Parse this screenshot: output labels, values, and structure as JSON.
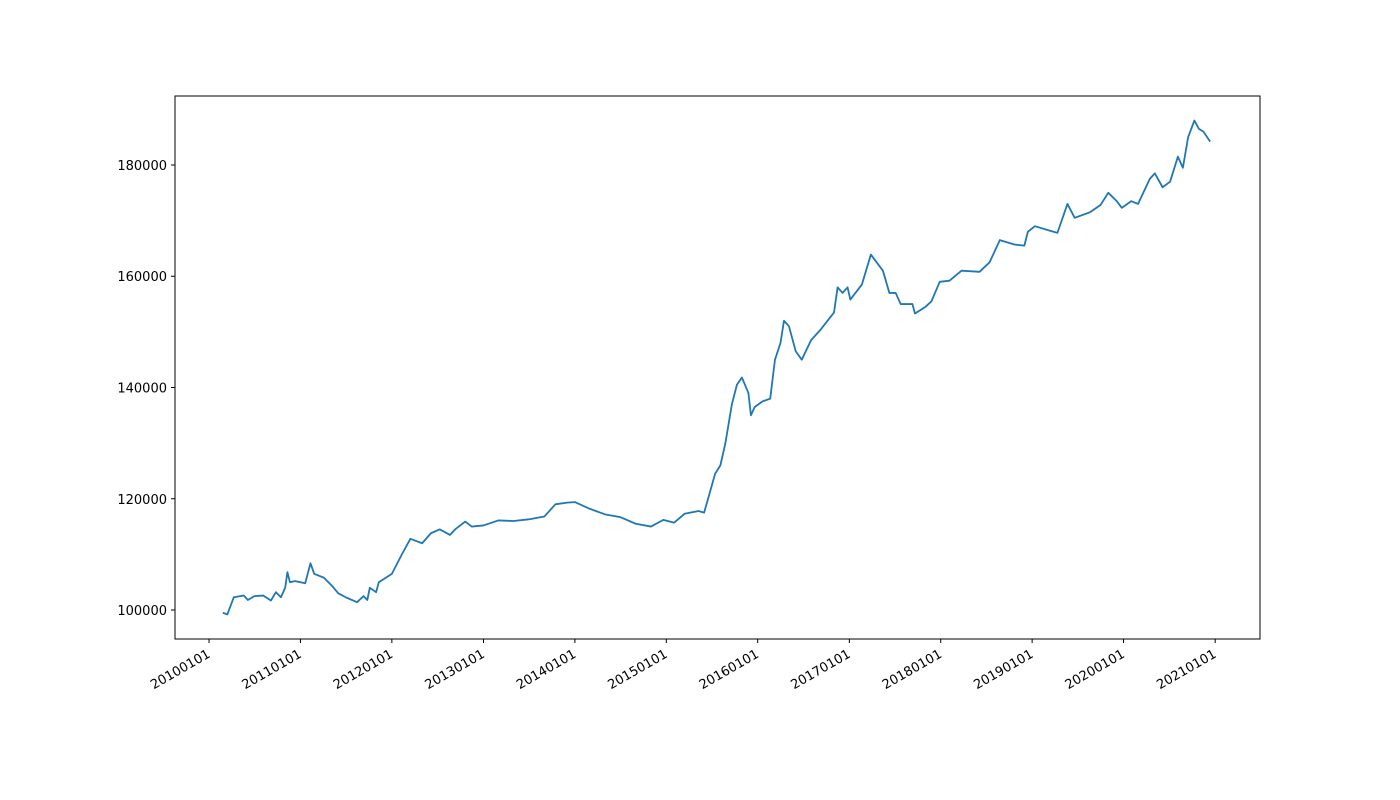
{
  "chart_data": {
    "type": "line",
    "color": "#1f77b4",
    "x": [
      "2010-02-25",
      "2010-03-15",
      "2010-04-10",
      "2010-05-20",
      "2010-06-05",
      "2010-07-01",
      "2010-08-05",
      "2010-09-05",
      "2010-09-25",
      "2010-10-15",
      "2010-11-01",
      "2010-11-10",
      "2010-11-20",
      "2010-12-10",
      "2011-01-01",
      "2011-01-20",
      "2011-02-10",
      "2011-02-25",
      "2011-04-05",
      "2011-05-10",
      "2011-06-01",
      "2011-07-05",
      "2011-08-15",
      "2011-09-10",
      "2011-09-25",
      "2011-10-05",
      "2011-10-30",
      "2011-11-10",
      "2012-01-01",
      "2012-02-10",
      "2012-03-15",
      "2012-05-01",
      "2012-06-05",
      "2012-07-10",
      "2012-08-20",
      "2012-09-10",
      "2012-10-20",
      "2012-11-15",
      "2013-01-01",
      "2013-03-01",
      "2013-05-01",
      "2013-07-01",
      "2013-09-01",
      "2013-10-15",
      "2013-12-01",
      "2014-01-01",
      "2014-03-01",
      "2014-05-01",
      "2014-07-01",
      "2014-09-01",
      "2014-11-01",
      "2014-12-20",
      "2015-02-01",
      "2015-03-15",
      "2015-05-10",
      "2015-06-01",
      "2015-06-20",
      "2015-07-15",
      "2015-08-05",
      "2015-08-25",
      "2015-09-20",
      "2015-10-10",
      "2015-10-30",
      "2015-11-25",
      "2015-12-05",
      "2015-12-20",
      "2016-01-20",
      "2016-02-20",
      "2016-03-10",
      "2016-04-01",
      "2016-04-15",
      "2016-05-05",
      "2016-06-01",
      "2016-06-25",
      "2016-08-01",
      "2016-09-10",
      "2016-11-01",
      "2016-11-15",
      "2016-12-05",
      "2016-12-25",
      "2017-01-05",
      "2017-02-20",
      "2017-03-28",
      "2017-05-15",
      "2017-06-10",
      "2017-07-05",
      "2017-07-25",
      "2017-09-10",
      "2017-09-20",
      "2017-11-01",
      "2017-11-25",
      "2017-12-28",
      "2018-02-05",
      "2018-03-25",
      "2018-06-05",
      "2018-07-15",
      "2018-08-25",
      "2018-10-22",
      "2018-12-01",
      "2018-12-15",
      "2019-01-12",
      "2019-03-12",
      "2019-04-12",
      "2019-05-22",
      "2019-06-20",
      "2019-08-20",
      "2019-10-01",
      "2019-11-01",
      "2019-12-05",
      "2019-12-25",
      "2020-02-01",
      "2020-02-28",
      "2020-04-15",
      "2020-05-05",
      "2020-06-05",
      "2020-07-05",
      "2020-08-05",
      "2020-08-25",
      "2020-09-15",
      "2020-10-10",
      "2020-10-28",
      "2020-11-15",
      "2020-12-12"
    ],
    "values": [
      99500,
      99200,
      102300,
      102600,
      101800,
      102500,
      102600,
      101700,
      103200,
      102300,
      104000,
      106800,
      105000,
      105200,
      105000,
      104800,
      108400,
      106500,
      105800,
      104200,
      103000,
      102200,
      101400,
      102500,
      101800,
      104000,
      103200,
      105000,
      106500,
      110000,
      112800,
      112000,
      113800,
      114500,
      113500,
      114500,
      115900,
      115000,
      115200,
      116100,
      116000,
      116300,
      116800,
      119000,
      119300,
      119400,
      118200,
      117200,
      116700,
      115500,
      115000,
      116200,
      115700,
      117300,
      117800,
      117500,
      120500,
      124500,
      126000,
      130000,
      137000,
      140500,
      141800,
      139000,
      135000,
      136500,
      137500,
      138000,
      145000,
      148000,
      152000,
      151000,
      146500,
      145000,
      148500,
      150500,
      153500,
      158000,
      157000,
      158000,
      155800,
      158500,
      163900,
      161000,
      157000,
      157000,
      155000,
      155000,
      153300,
      154500,
      155500,
      159000,
      159200,
      161000,
      160800,
      162500,
      166500,
      165700,
      165500,
      168000,
      169000,
      168200,
      167800,
      173000,
      170500,
      171500,
      172800,
      175000,
      173500,
      172300,
      173500,
      173000,
      177500,
      178500,
      176000,
      177000,
      181500,
      179500,
      185000,
      188000,
      186500,
      186000,
      184200
    ],
    "xlim": [
      "2009-08-18",
      "2021-06-29"
    ],
    "xticks": [
      {
        "value": "2010-01-01",
        "label": "20100101"
      },
      {
        "value": "2011-01-01",
        "label": "20110101"
      },
      {
        "value": "2012-01-01",
        "label": "20120101"
      },
      {
        "value": "2013-01-01",
        "label": "20130101"
      },
      {
        "value": "2014-01-01",
        "label": "20140101"
      },
      {
        "value": "2015-01-01",
        "label": "20150101"
      },
      {
        "value": "2016-01-01",
        "label": "20160101"
      },
      {
        "value": "2017-01-01",
        "label": "20170101"
      },
      {
        "value": "2018-01-01",
        "label": "20180101"
      },
      {
        "value": "2019-01-01",
        "label": "20190101"
      },
      {
        "value": "2020-01-01",
        "label": "20200101"
      },
      {
        "value": "2021-01-01",
        "label": "20210101"
      }
    ],
    "ylim": [
      94787,
      192404
    ],
    "yticks": [
      100000,
      120000,
      140000,
      160000,
      180000
    ]
  }
}
